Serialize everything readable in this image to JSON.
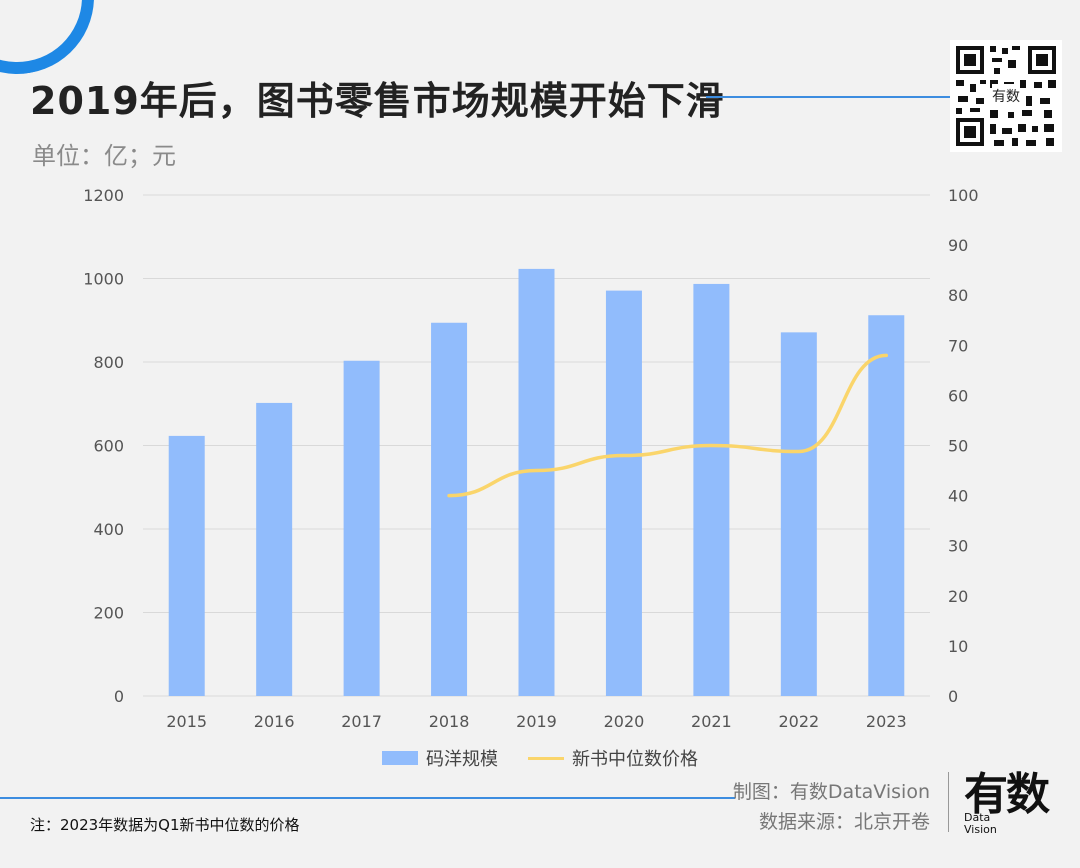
{
  "header": {
    "title": "2019年后，图书零售市场规模开始下滑",
    "unit": "单位：亿；元"
  },
  "colors": {
    "accent": "#1e88e5",
    "bar": "#91bcfc",
    "line": "#fad56b"
  },
  "chart_data": {
    "type": "bar",
    "categories": [
      "2015",
      "2016",
      "2017",
      "2018",
      "2019",
      "2020",
      "2021",
      "2022",
      "2023"
    ],
    "series": [
      {
        "name": "码洋规模",
        "type": "bar",
        "axis": "left",
        "values": [
          623,
          702,
          803,
          894,
          1023,
          971,
          987,
          871,
          912
        ]
      },
      {
        "name": "新书中位数价格",
        "type": "line",
        "axis": "right",
        "values": [
          null,
          null,
          null,
          40,
          45,
          48,
          50,
          48.8,
          68
        ]
      }
    ],
    "ylim_left": [
      0,
      1200
    ],
    "yticks_left": [
      "0",
      "200",
      "400",
      "600",
      "800",
      "1000",
      "1200"
    ],
    "ylim_right": [
      0,
      100
    ],
    "yticks_right": [
      "0",
      "10",
      "20",
      "30",
      "40",
      "50",
      "60",
      "70",
      "80",
      "90",
      "100"
    ],
    "grid": true,
    "legend": "bottom"
  },
  "footer": {
    "note": "注：2023年数据为Q1新书中位数的价格",
    "credit_maker": "制图：有数DataVision",
    "credit_source": "数据来源：北京开卷",
    "logo_main": "有数",
    "logo_sub_1": "Data",
    "logo_sub_2": "Vision"
  }
}
